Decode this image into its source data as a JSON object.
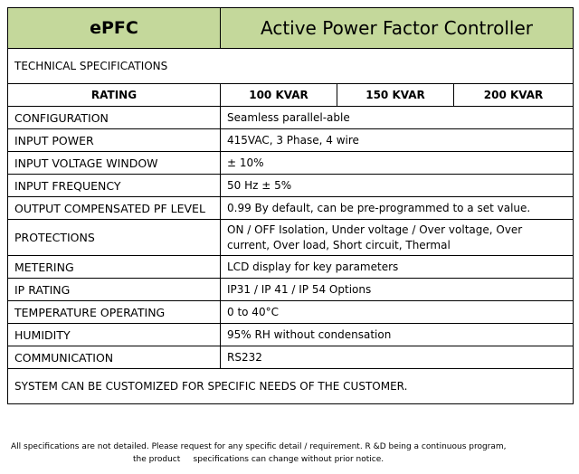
{
  "header": {
    "brand": "ePFC",
    "product": "Active Power Factor Controller"
  },
  "section_title": "TECHNICAL SPECIFICATIONS",
  "rating": {
    "label": "RATING",
    "options": [
      "100 KVAR",
      "150 KVAR",
      "200 KVAR"
    ]
  },
  "specs": [
    {
      "label": "CONFIGURATION",
      "value": "Seamless parallel-able"
    },
    {
      "label": "INPUT POWER",
      "value": "415VAC, 3 Phase, 4 wire"
    },
    {
      "label": "INPUT VOLTAGE WINDOW",
      "value": "± 10%"
    },
    {
      "label": "INPUT FREQUENCY",
      "value": "50 Hz ± 5%"
    },
    {
      "label": "OUTPUT COMPENSATED PF LEVEL",
      "value": "0.99 By default, can be pre-programmed to a set value."
    },
    {
      "label": "PROTECTIONS",
      "value": "ON / OFF Isolation, Under voltage / Over voltage, Over current, Over load, Short circuit, Thermal"
    },
    {
      "label": "METERING",
      "value": "LCD display for key parameters"
    },
    {
      "label": "IP RATING",
      "value": "IP31 / IP 41 / IP 54 Options"
    },
    {
      "label": "TEMPERATURE OPERATING",
      "value": "0 to 40°C"
    },
    {
      "label": "HUMIDITY",
      "value": "95% RH without condensation"
    },
    {
      "label": "COMMUNICATION",
      "value": "RS232"
    }
  ],
  "customization_note": "SYSTEM CAN BE CUSTOMIZED FOR SPECIFIC NEEDS OF THE CUSTOMER.",
  "footnote": {
    "line1": "All specifications are not detailed. Please request for any specific detail / requirement. R &D being a continuous program,",
    "line2": "the product     specifications can change without prior notice."
  },
  "colors": {
    "header_bg": "#c4d89b",
    "border": "#000000"
  }
}
